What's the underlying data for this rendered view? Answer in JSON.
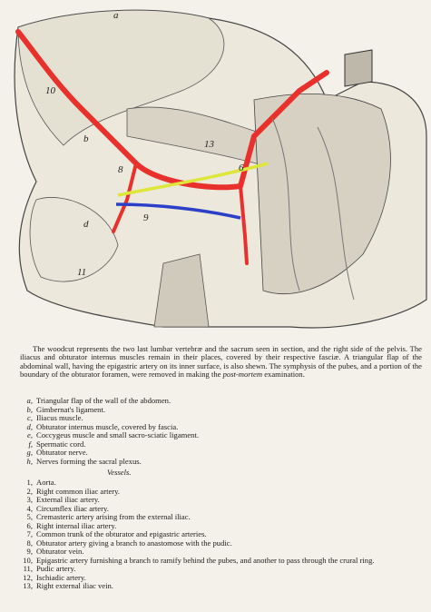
{
  "figure": {
    "labels": [
      "a",
      "10",
      "b",
      "8",
      "13",
      "6",
      "9",
      "d",
      "11"
    ]
  },
  "caption": {
    "paragraph": {
      "before": "The woodcut represents the two last lumbar vertebræ and the sacrum seen in section, and the right side of the pelvis. The iliacus and obturator internus muscles remain in their places, covered by their respective fasciæ. A triangular flap of the abdominal wall, having the epigastric artery on its inner surface, is also shewn. The symphysis of the pubes, and a portion of the boundary of the obturator foramen, were removed in making the",
      "emphasis": "post-mortem",
      "after": "examination."
    },
    "items": [
      {
        "key": "a,",
        "text": "Triangular flap of the wall of the abdomen."
      },
      {
        "key": "b,",
        "text": "Gimbernat's ligament."
      },
      {
        "key": "c,",
        "text": "Iliacus muscle."
      },
      {
        "key": "d,",
        "text": "Obturator internus muscle, covered by fascia."
      },
      {
        "key": "e,",
        "text": "Coccygeus muscle and small sacro-sciatic ligament."
      },
      {
        "key": "f,",
        "text": "Spermatic cord."
      },
      {
        "key": "g,",
        "text": "Obturator nerve."
      },
      {
        "key": "h,",
        "text": "Nerves forming the sacral plexus."
      }
    ],
    "vessels_heading": "Vessels.",
    "vessels": [
      {
        "key": "1,",
        "text": "Aorta."
      },
      {
        "key": "2,",
        "text": "Right common iliac artery."
      },
      {
        "key": "3,",
        "text": "External iliac artery."
      },
      {
        "key": "4,",
        "text": "Circumflex iliac artery."
      },
      {
        "key": "5,",
        "text": "Cremasteric artery arising from the external iliac."
      },
      {
        "key": "6,",
        "text": "Right internal iliac artery."
      },
      {
        "key": "7,",
        "text": "Common trunk of the obturator and epigastric arteries."
      },
      {
        "key": "8,",
        "text": "Obturator artery giving a branch to anastomose with the pudic."
      },
      {
        "key": "9,",
        "text": "Obturator vein."
      },
      {
        "key": "10,",
        "text": "Epigastric artery furnishing a branch to ramify behind the pubes, and another to pass through the crural ring."
      },
      {
        "key": "11,",
        "text": "Pudic artery."
      },
      {
        "key": "12,",
        "text": "Ischiadic artery."
      },
      {
        "key": "13,",
        "text": "Right external iliac vein."
      }
    ]
  }
}
